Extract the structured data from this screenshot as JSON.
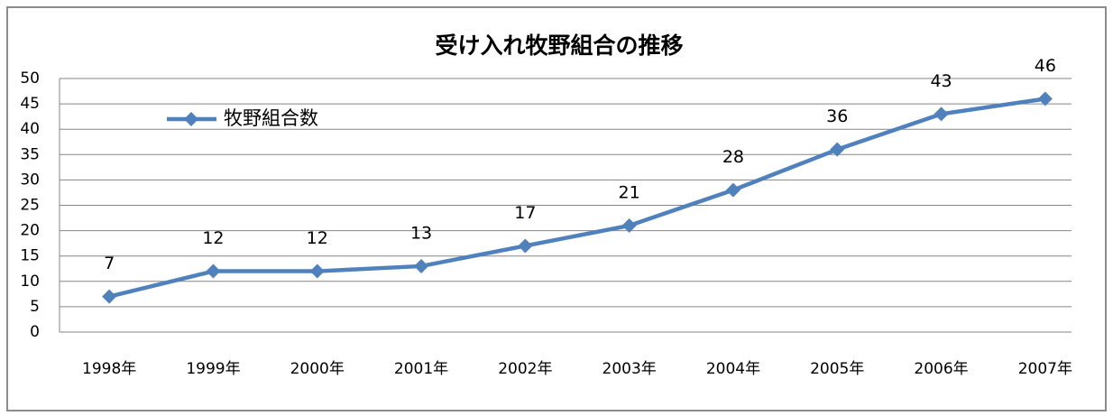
{
  "chart_data": {
    "type": "line",
    "title": "受け入れ牧野組合の推移",
    "categories": [
      "1998年",
      "1999年",
      "2000年",
      "2001年",
      "2002年",
      "2003年",
      "2004年",
      "2005年",
      "2006年",
      "2007年"
    ],
    "series": [
      {
        "name": "牧野組合数",
        "color": "#4f81bd",
        "values": [
          7,
          12,
          12,
          13,
          17,
          21,
          28,
          36,
          43,
          46
        ]
      }
    ],
    "ylim": [
      0,
      50
    ],
    "yticks": [
      0,
      5,
      10,
      15,
      20,
      25,
      30,
      35,
      40,
      45,
      50
    ],
    "grid": true,
    "legend": "upper left",
    "data_labels": true
  }
}
